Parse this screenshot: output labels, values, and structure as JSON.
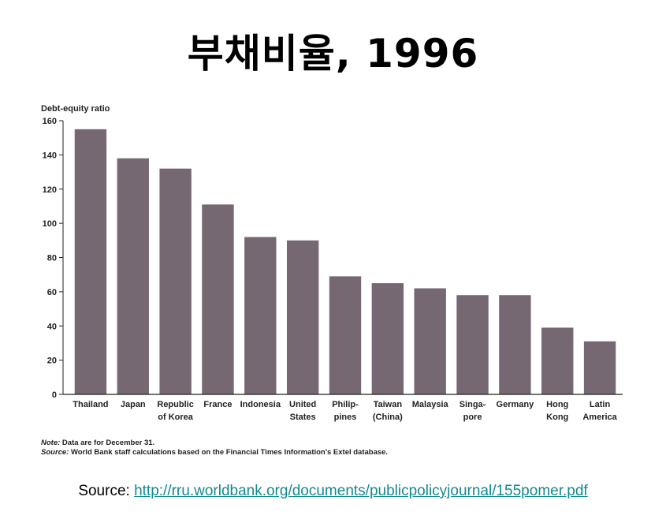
{
  "slide": {
    "title": "부채비율, 1996"
  },
  "chart_data": {
    "type": "bar",
    "ylabel": "Debt-equity ratio",
    "ylim": [
      0,
      160
    ],
    "yticks": [
      0,
      20,
      40,
      60,
      80,
      100,
      120,
      140,
      160
    ],
    "categories": [
      [
        "Thailand"
      ],
      [
        "Japan"
      ],
      [
        "Republic",
        "of Korea"
      ],
      [
        "France"
      ],
      [
        "Indonesia"
      ],
      [
        "United",
        "States"
      ],
      [
        "Philip-",
        "pines"
      ],
      [
        "Taiwan",
        "(China)"
      ],
      [
        "Malaysia"
      ],
      [
        "Singa-",
        "pore"
      ],
      [
        "Germany"
      ],
      [
        "Hong",
        "Kong"
      ],
      [
        "Latin",
        "America"
      ]
    ],
    "values": [
      155,
      138,
      132,
      111,
      92,
      90,
      69,
      65,
      62,
      58,
      58,
      39,
      31
    ],
    "bar_color": "#756873",
    "grid": false
  },
  "notes": {
    "note_label": "Note:",
    "note_text": " Data are for December 31.",
    "source_label": "Source:",
    "source_text": " World Bank staff calculations based on the Financial Times Information's Extel database."
  },
  "footer": {
    "source_prefix": "Source: ",
    "source_url": "http://rru.worldbank.org/documents/publicpolicyjournal/155pomer.pdf"
  }
}
